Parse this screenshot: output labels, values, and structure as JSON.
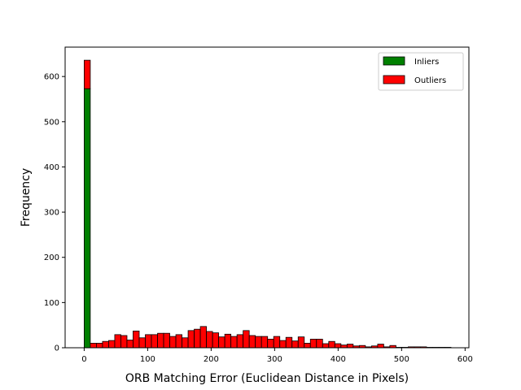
{
  "chart_data": {
    "type": "bar",
    "stacked": true,
    "histogram": true,
    "xlabel": "ORB Matching Error (Euclidean Distance in Pixels)",
    "ylabel": "Frequency",
    "xlim": [
      -30,
      606
    ],
    "ylim": [
      0,
      665
    ],
    "xticks": [
      0,
      100,
      200,
      300,
      400,
      500,
      600
    ],
    "yticks": [
      0,
      100,
      200,
      300,
      400,
      500,
      600
    ],
    "bin_width": 9.63,
    "bin_start": 0,
    "legend_position": "top-right",
    "grid": false,
    "series": [
      {
        "name": "Inliers",
        "color": "#008000",
        "values": [
          573
        ]
      },
      {
        "name": "Outliers",
        "color": "#ff0000",
        "values": [
          63,
          10,
          10,
          14,
          16,
          29,
          27,
          17,
          37,
          22,
          29,
          29,
          32,
          32,
          25,
          29,
          22,
          38,
          41,
          47,
          36,
          33,
          24,
          30,
          25,
          29,
          38,
          27,
          25,
          25,
          19,
          25,
          16,
          23,
          15,
          24,
          10,
          19,
          19,
          9,
          14,
          9,
          6,
          8,
          4,
          5,
          2,
          4,
          8,
          2,
          5,
          1,
          1,
          2,
          2,
          2,
          1,
          1,
          1,
          1
        ]
      }
    ]
  }
}
